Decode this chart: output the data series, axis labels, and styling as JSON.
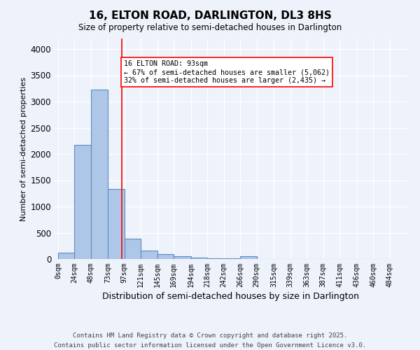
{
  "title": "16, ELTON ROAD, DARLINGTON, DL3 8HS",
  "subtitle": "Size of property relative to semi-detached houses in Darlington",
  "xlabel": "Distribution of semi-detached houses by size in Darlington",
  "ylabel": "Number of semi-detached properties",
  "bin_labels": [
    "0sqm",
    "24sqm",
    "48sqm",
    "73sqm",
    "97sqm",
    "121sqm",
    "145sqm",
    "169sqm",
    "194sqm",
    "218sqm",
    "242sqm",
    "266sqm",
    "290sqm",
    "315sqm",
    "339sqm",
    "363sqm",
    "387sqm",
    "411sqm",
    "436sqm",
    "460sqm",
    "484sqm"
  ],
  "bin_edges": [
    0,
    24,
    48,
    73,
    97,
    121,
    145,
    169,
    194,
    218,
    242,
    266,
    290,
    315,
    339,
    363,
    387,
    411,
    436,
    460,
    484
  ],
  "bar_heights": [
    120,
    2180,
    3230,
    1340,
    390,
    165,
    100,
    55,
    30,
    20,
    10,
    50,
    0,
    0,
    0,
    0,
    0,
    0,
    0,
    0
  ],
  "bar_color": "#aec6e8",
  "bar_edge_color": "#5b8dc0",
  "vline_x": 93,
  "vline_color": "red",
  "annotation_text": "16 ELTON ROAD: 93sqm\n← 67% of semi-detached houses are smaller (5,062)\n32% of semi-detached houses are larger (2,435) →",
  "annotation_box_color": "white",
  "annotation_box_edge_color": "red",
  "footer": "Contains HM Land Registry data © Crown copyright and database right 2025.\nContains public sector information licensed under the Open Government Licence v3.0.",
  "background_color": "#eef2fb",
  "ylim": [
    0,
    4200
  ],
  "yticks": [
    0,
    500,
    1000,
    1500,
    2000,
    2500,
    3000,
    3500,
    4000
  ]
}
